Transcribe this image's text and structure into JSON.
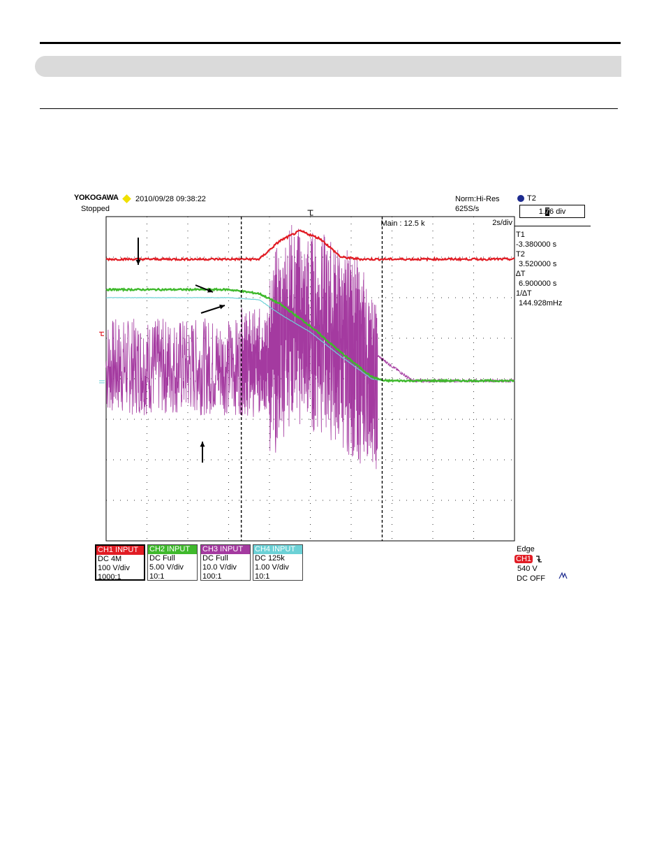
{
  "header": {
    "brand": "YOKOGAWA",
    "datetime": "2010/09/28 09:38:22",
    "status": "Stopped",
    "mode": "Norm:Hi-Res",
    "sample_rate": "625S/s",
    "timebase": "2s/div",
    "record_length": "Main : 12.5 k"
  },
  "cursor_panel": {
    "selected_label": "T2",
    "selected_value_a": "1.",
    "selected_value_hl": "7",
    "selected_value_b": "6 div",
    "t1_label": "T1",
    "t1_value": "-3.380000 s",
    "t2_label": "T2",
    "t2_value": "3.520000 s",
    "dt_label": "∆T",
    "dt_value": "6.900000 s",
    "inv_dt_label": "1/∆T",
    "inv_dt_value": "144.928mHz"
  },
  "trigger": {
    "title": "Edge",
    "source": "CH1",
    "level": "540 V",
    "coupling": "DC OFF"
  },
  "channels": [
    {
      "name": "CH1 INPUT",
      "coupling": "DC 4M",
      "scale": "100 V/div",
      "probe": "1000:1",
      "color": "#e11c24"
    },
    {
      "name": "CH2 INPUT",
      "coupling": "DC Full",
      "scale": "5.00 V/div",
      "probe": "10:1",
      "color": "#3fb92c"
    },
    {
      "name": "CH3 INPUT",
      "coupling": "DC Full",
      "scale": "10.0 V/div",
      "probe": "100:1",
      "color": "#a43aa0"
    },
    {
      "name": "CH4 INPUT",
      "coupling": "DC 125k",
      "scale": "1.00 V/div",
      "probe": "10:1",
      "color": "#6cd1d6"
    }
  ],
  "chart_data": {
    "type": "line",
    "title": "",
    "xlabel": "",
    "ylabel": "",
    "xlim": [
      -10,
      10
    ],
    "ylim": [
      -4,
      4
    ],
    "grid": true,
    "cursors": {
      "T1": -3.38,
      "T2": 3.52
    },
    "series": [
      {
        "name": "CH1 INPUT",
        "color": "#e11c24",
        "x": [
          -10,
          -3.4,
          -2.5,
          -1.5,
          -0.5,
          0.5,
          1.5,
          2.5,
          3.5,
          5,
          10
        ],
        "y": [
          2.95,
          2.95,
          2.95,
          3.4,
          3.65,
          3.45,
          3.0,
          2.95,
          2.95,
          2.95,
          2.95
        ]
      },
      {
        "name": "CH2 INPUT",
        "color": "#3fb92c",
        "x": [
          -10,
          -4,
          -2.5,
          -1.5,
          0,
          1.5,
          3,
          3.6,
          5,
          10
        ],
        "y": [
          2.2,
          2.2,
          2.1,
          1.85,
          1.3,
          0.65,
          0.05,
          -0.05,
          -0.05,
          -0.05
        ]
      },
      {
        "name": "CH3 INPUT",
        "color": "#a43aa0",
        "x": [
          -10,
          -3.4,
          -2,
          -1,
          0,
          1,
          2,
          3,
          3.2,
          5,
          10
        ],
        "y": [
          1.2,
          1.2,
          1.2,
          2.2,
          2.0,
          1.8,
          1.4,
          0.9,
          0.6,
          -0.05,
          -0.05
        ]
      },
      {
        "name": "CH4 INPUT",
        "color": "#6cd1d6",
        "x": [
          -10,
          -4,
          -2.5,
          -1.5,
          0,
          1.5,
          3,
          3.6,
          5,
          10
        ],
        "y": [
          2.0,
          2.0,
          1.95,
          1.6,
          1.15,
          0.55,
          0.0,
          -0.05,
          -0.05,
          -0.05
        ]
      }
    ]
  }
}
